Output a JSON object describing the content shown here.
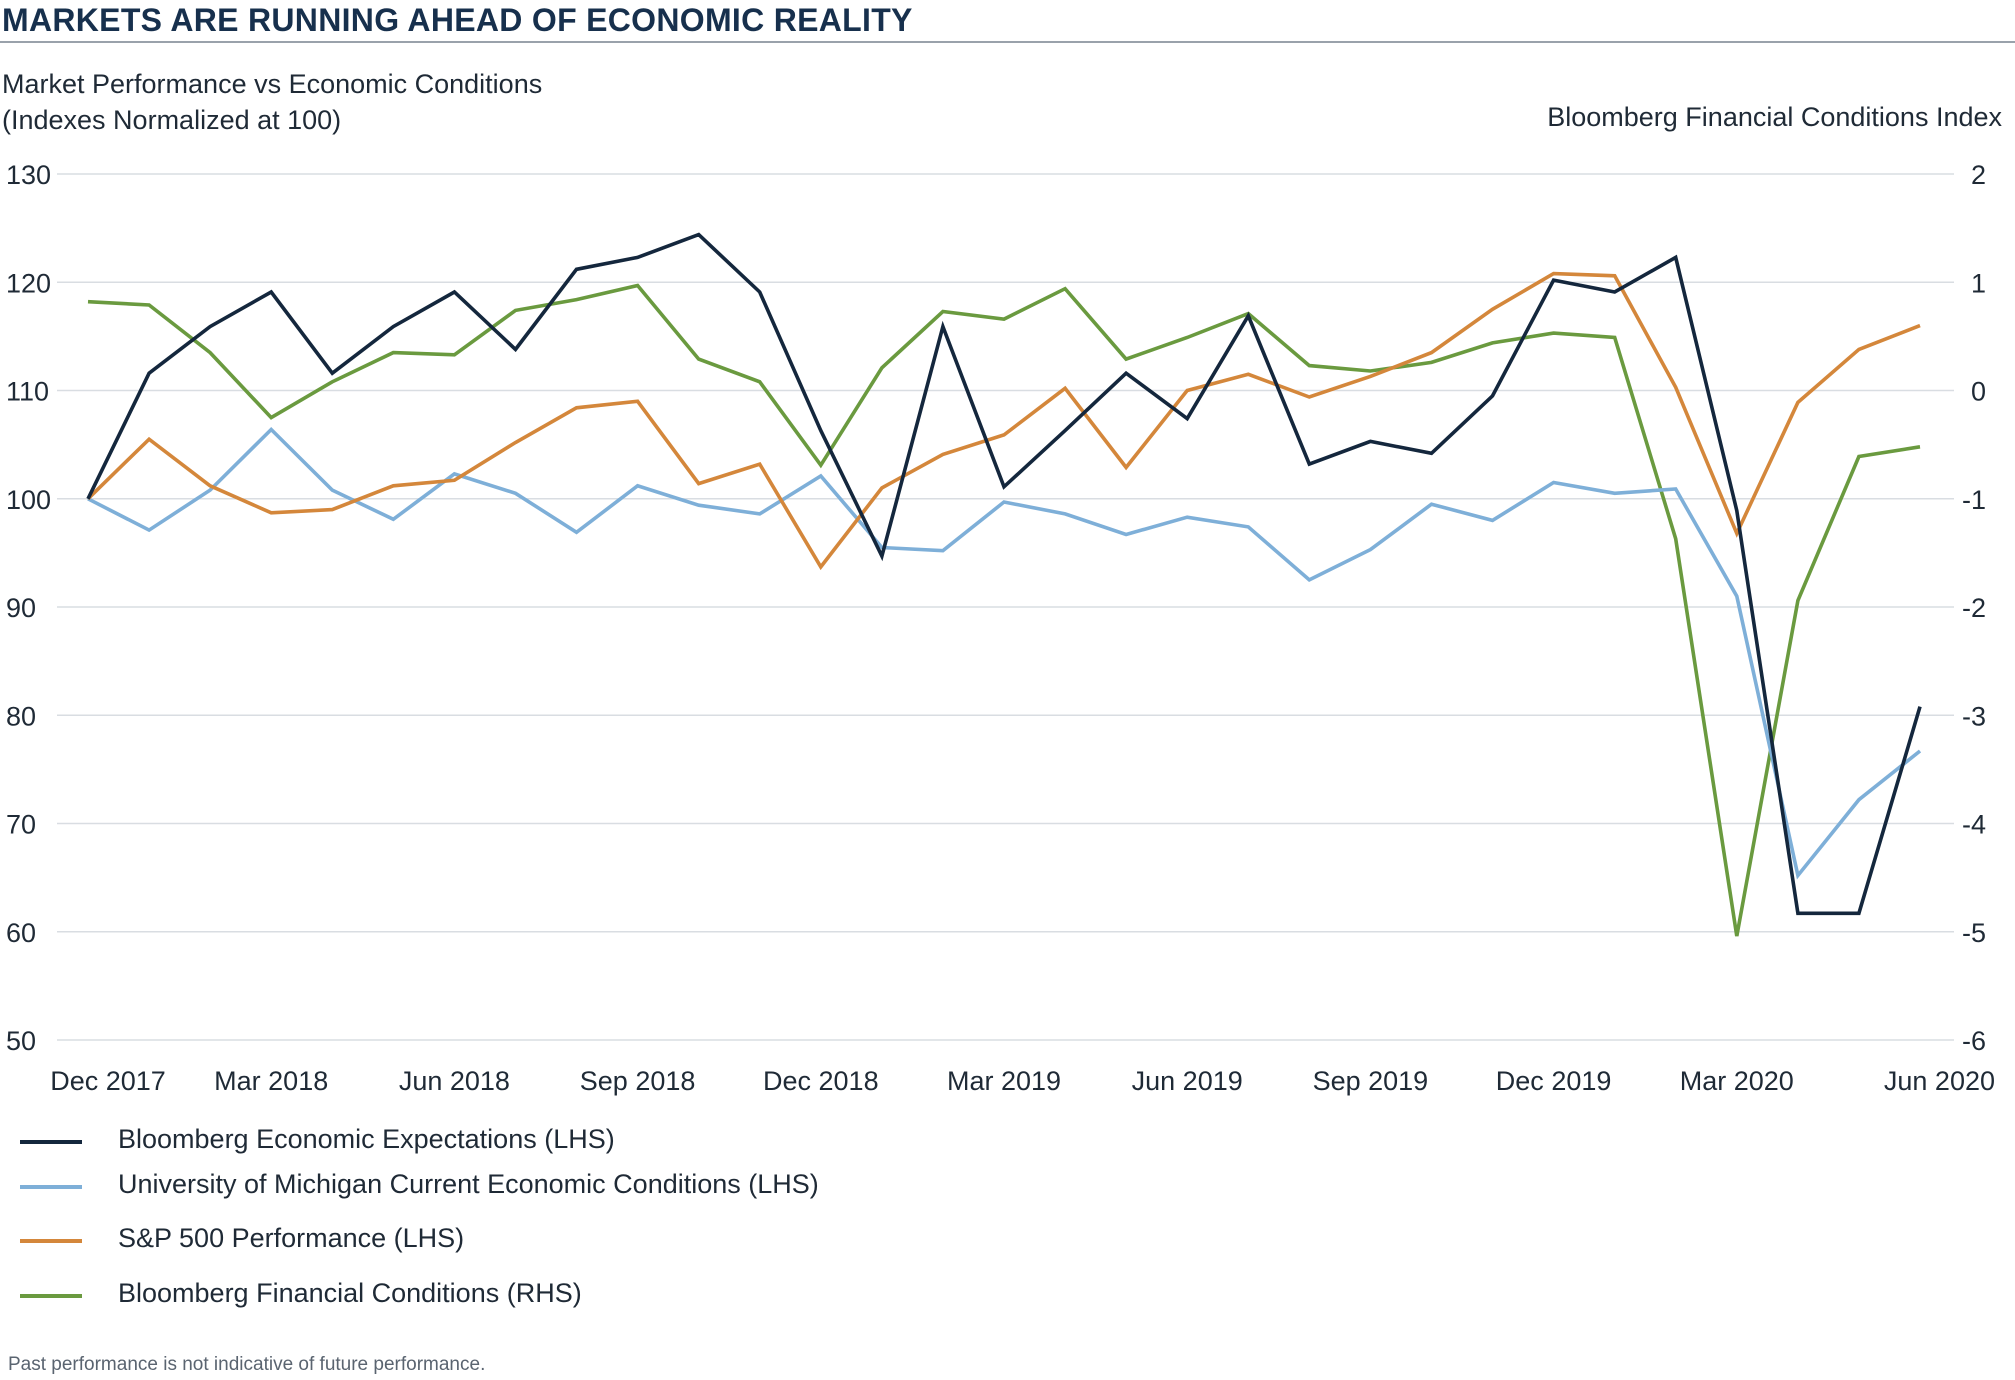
{
  "header": {
    "title": "MARKETS ARE RUNNING AHEAD OF ECONOMIC REALITY"
  },
  "chart_data": {
    "type": "line",
    "title": "Market Performance vs Economic Conditions",
    "subtitle": "(Indexes Normalized at 100)",
    "y_right_label": "Bloomberg Financial Conditions Index",
    "x_tick_labels": [
      "Dec 2017",
      "Mar 2018",
      "Jun 2018",
      "Sep 2018",
      "Dec 2018",
      "Mar 2019",
      "Jun 2019",
      "Sep 2019",
      "Dec 2019",
      "Mar 2020",
      "Jun 2020"
    ],
    "x": [
      "Dec 2017",
      "Jan 2018",
      "Feb 2018",
      "Mar 2018",
      "Apr 2018",
      "May 2018",
      "Jun 2018",
      "Jul 2018",
      "Aug 2018",
      "Sep 2018",
      "Oct 2018",
      "Nov 2018",
      "Dec 2018",
      "Jan 2019",
      "Feb 2019",
      "Mar 2019",
      "Apr 2019",
      "May 2019",
      "Jun 2019",
      "Jul 2019",
      "Aug 2019",
      "Sep 2019",
      "Oct 2019",
      "Nov 2019",
      "Dec 2019",
      "Jan 2020",
      "Feb 2020",
      "Mar 2020",
      "Apr 2020",
      "May 2020",
      "Jun 2020"
    ],
    "y_left": {
      "ticks": [
        130,
        120,
        110,
        100,
        90,
        80,
        70,
        60,
        50
      ],
      "ylim": [
        50,
        130
      ]
    },
    "y_right": {
      "ticks": [
        2,
        1,
        0,
        -1,
        -2,
        -3,
        -4,
        -5,
        -6
      ],
      "ylim": [
        -6,
        2
      ]
    },
    "grid": true,
    "legend_position": "bottom-left",
    "series": [
      {
        "name": "Bloomberg Economic Expectations (LHS)",
        "axis": "left",
        "color": "#14273d",
        "values": [
          100,
          111.6,
          115.9,
          119.1,
          111.6,
          115.9,
          119.1,
          113.8,
          121.2,
          122.3,
          124.4,
          119.1,
          106.3,
          94.7,
          115.9,
          101.1,
          106.3,
          111.6,
          107.4,
          116.9,
          103.2,
          105.3,
          104.2,
          109.5,
          120.2,
          119.1,
          122.3,
          98.9,
          61.7,
          61.7,
          80.8
        ]
      },
      {
        "name": "University of Michigan Current Economic Conditions (LHS)",
        "axis": "left",
        "color": "#7eafd8",
        "values": [
          100,
          97.1,
          100.8,
          106.4,
          100.8,
          98.1,
          102.3,
          100.5,
          96.9,
          101.2,
          99.4,
          98.6,
          102.1,
          95.5,
          95.2,
          99.7,
          98.6,
          96.7,
          98.3,
          97.4,
          92.5,
          95.3,
          99.5,
          98.0,
          101.5,
          100.5,
          100.9,
          91.0,
          65.2,
          72.2,
          76.7
        ]
      },
      {
        "name": "S&P 500 Performance (LHS)",
        "axis": "left",
        "color": "#d4873b",
        "values": [
          100,
          105.5,
          101.2,
          98.7,
          99.0,
          101.2,
          101.7,
          105.2,
          108.4,
          109.0,
          101.4,
          103.2,
          93.7,
          101.0,
          104.1,
          105.9,
          110.2,
          102.9,
          110.0,
          111.5,
          109.4,
          111.3,
          113.5,
          117.5,
          120.8,
          120.6,
          110.3,
          96.8,
          108.9,
          113.8,
          116.0
        ]
      },
      {
        "name": "Bloomberg Financial Conditions (RHS)",
        "axis": "right",
        "color": "#6a9a3f",
        "values": [
          0.82,
          0.79,
          0.35,
          -0.25,
          0.08,
          0.35,
          0.33,
          0.74,
          0.84,
          0.97,
          0.29,
          0.08,
          -0.69,
          0.21,
          0.73,
          0.66,
          0.94,
          0.29,
          0.49,
          0.71,
          0.23,
          0.18,
          0.26,
          0.44,
          0.53,
          0.49,
          -1.37,
          -5.04,
          -1.94,
          -0.61,
          -0.52
        ]
      }
    ]
  },
  "footnote": "Past performance is not indicative of future performance."
}
